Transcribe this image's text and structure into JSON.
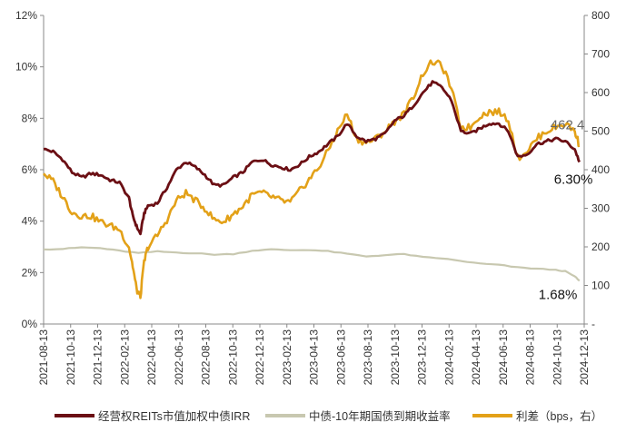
{
  "chart_data": {
    "type": "line",
    "x_ticks": [
      "2021-08-13",
      "2021-10-13",
      "2021-12-13",
      "2022-02-13",
      "2022-04-13",
      "2022-06-13",
      "2022-08-13",
      "2022-10-13",
      "2022-12-13",
      "2023-02-13",
      "2023-04-13",
      "2023-06-13",
      "2023-08-13",
      "2023-10-13",
      "2023-12-13",
      "2024-02-13",
      "2024-04-13",
      "2024-06-13",
      "2024-08-13",
      "2024-10-13",
      "2024-12-13"
    ],
    "y_left": {
      "ticks": [
        "0%",
        "2%",
        "4%",
        "6%",
        "8%",
        "10%",
        "12%"
      ],
      "min": 0,
      "max": 12
    },
    "y_right": {
      "ticks": [
        "-",
        "100",
        "200",
        "300",
        "400",
        "500",
        "600",
        "700",
        "800"
      ],
      "min": 0,
      "max": 800
    },
    "grid": false,
    "legend_position": "bottom",
    "series": [
      {
        "name": "经营权REITs市值加权中债IRR",
        "axis": "left",
        "color": "#6b0f14",
        "points": [
          [
            0,
            6.8
          ],
          [
            1,
            6.7
          ],
          [
            2,
            6.4
          ],
          [
            3,
            5.9
          ],
          [
            4,
            5.7
          ],
          [
            5,
            5.85
          ],
          [
            6,
            5.8
          ],
          [
            7,
            5.6
          ],
          [
            8,
            5.5
          ],
          [
            9,
            4.9
          ],
          [
            9.4,
            4.2
          ],
          [
            9.8,
            3.8
          ],
          [
            10.2,
            3.5
          ],
          [
            10.6,
            4.3
          ],
          [
            11,
            4.6
          ],
          [
            12,
            4.7
          ],
          [
            13,
            5.3
          ],
          [
            14,
            6.0
          ],
          [
            15,
            6.3
          ],
          [
            16,
            6.1
          ],
          [
            17,
            5.8
          ],
          [
            18,
            5.4
          ],
          [
            19,
            5.4
          ],
          [
            20,
            5.7
          ],
          [
            21,
            5.9
          ],
          [
            22,
            6.3
          ],
          [
            23,
            6.4
          ],
          [
            24,
            6.2
          ],
          [
            25,
            6.1
          ],
          [
            26,
            6.0
          ],
          [
            27,
            6.2
          ],
          [
            28,
            6.5
          ],
          [
            29,
            6.7
          ],
          [
            30,
            7.0
          ],
          [
            31,
            7.3
          ],
          [
            32,
            7.8
          ],
          [
            33,
            7.3
          ],
          [
            34,
            7.1
          ],
          [
            35,
            7.2
          ],
          [
            36,
            7.4
          ],
          [
            37,
            7.9
          ],
          [
            38,
            8.1
          ],
          [
            39,
            8.5
          ],
          [
            40,
            9.0
          ],
          [
            41,
            9.4
          ],
          [
            42,
            9.2
          ],
          [
            43,
            8.7
          ],
          [
            44,
            7.5
          ],
          [
            45,
            7.4
          ],
          [
            46,
            7.6
          ],
          [
            47,
            7.8
          ],
          [
            48,
            7.8
          ],
          [
            49,
            7.5
          ],
          [
            50,
            6.5
          ],
          [
            51,
            6.6
          ],
          [
            52,
            7.0
          ],
          [
            53,
            7.1
          ],
          [
            54,
            7.2
          ],
          [
            55,
            7.1
          ],
          [
            56,
            6.8
          ],
          [
            56.5,
            6.3
          ]
        ],
        "end_label": "6.30%"
      },
      {
        "name": "中债-10年期国债到期收益率",
        "axis": "left",
        "color": "#c8c8b0",
        "points": [
          [
            0,
            2.9
          ],
          [
            2,
            2.92
          ],
          [
            4,
            2.98
          ],
          [
            6,
            2.95
          ],
          [
            8,
            2.85
          ],
          [
            10,
            2.76
          ],
          [
            12,
            2.82
          ],
          [
            14,
            2.78
          ],
          [
            16,
            2.75
          ],
          [
            18,
            2.7
          ],
          [
            20,
            2.72
          ],
          [
            22,
            2.85
          ],
          [
            24,
            2.9
          ],
          [
            26,
            2.87
          ],
          [
            28,
            2.88
          ],
          [
            30,
            2.83
          ],
          [
            32,
            2.73
          ],
          [
            34,
            2.63
          ],
          [
            36,
            2.68
          ],
          [
            38,
            2.72
          ],
          [
            40,
            2.6
          ],
          [
            42,
            2.55
          ],
          [
            44,
            2.45
          ],
          [
            46,
            2.35
          ],
          [
            48,
            2.3
          ],
          [
            50,
            2.2
          ],
          [
            52,
            2.15
          ],
          [
            54,
            2.1
          ],
          [
            55,
            2.05
          ],
          [
            56,
            1.85
          ],
          [
            56.5,
            1.68
          ]
        ],
        "end_label": "1.68%"
      },
      {
        "name": "利差（bps，右）",
        "axis": "right",
        "color": "#e3a118",
        "points": [
          [
            0,
            390
          ],
          [
            1,
            370
          ],
          [
            2,
            330
          ],
          [
            3,
            290
          ],
          [
            4,
            280
          ],
          [
            5,
            280
          ],
          [
            6,
            265
          ],
          [
            7,
            255
          ],
          [
            8,
            245
          ],
          [
            9,
            200
          ],
          [
            9.4,
            150
          ],
          [
            9.8,
            90
          ],
          [
            10.2,
            70
          ],
          [
            10.6,
            160
          ],
          [
            11,
            200
          ],
          [
            12,
            230
          ],
          [
            13,
            270
          ],
          [
            14,
            320
          ],
          [
            15,
            340
          ],
          [
            16,
            320
          ],
          [
            17,
            300
          ],
          [
            18,
            270
          ],
          [
            19,
            265
          ],
          [
            20,
            285
          ],
          [
            21,
            305
          ],
          [
            22,
            335
          ],
          [
            23,
            340
          ],
          [
            24,
            330
          ],
          [
            25,
            320
          ],
          [
            26,
            315
          ],
          [
            27,
            345
          ],
          [
            28,
            375
          ],
          [
            29,
            405
          ],
          [
            30,
            450
          ],
          [
            31,
            500
          ],
          [
            32,
            545
          ],
          [
            33,
            480
          ],
          [
            34,
            470
          ],
          [
            35,
            480
          ],
          [
            36,
            500
          ],
          [
            37,
            525
          ],
          [
            38,
            545
          ],
          [
            39,
            590
          ],
          [
            40,
            650
          ],
          [
            41,
            680
          ],
          [
            42,
            670
          ],
          [
            43,
            610
          ],
          [
            44,
            510
          ],
          [
            45,
            510
          ],
          [
            46,
            540
          ],
          [
            47,
            550
          ],
          [
            48,
            550
          ],
          [
            49,
            530
          ],
          [
            50,
            430
          ],
          [
            51,
            450
          ],
          [
            52,
            480
          ],
          [
            53,
            500
          ],
          [
            54,
            510
          ],
          [
            55,
            520
          ],
          [
            56,
            500
          ],
          [
            56.5,
            462.4
          ]
        ],
        "end_label": "462.4"
      }
    ]
  }
}
